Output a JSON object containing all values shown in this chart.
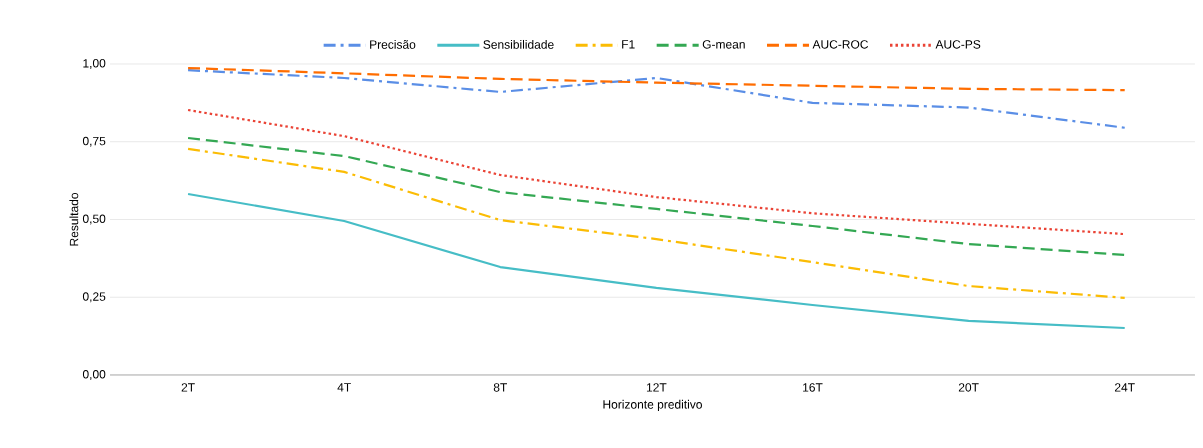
{
  "chart_data": {
    "type": "line",
    "xlabel": "Horizonte preditivo",
    "ylabel": "Resultado",
    "categories": [
      "2T",
      "4T",
      "8T",
      "12T",
      "16T",
      "20T",
      "24T"
    ],
    "ylim": [
      0,
      1
    ],
    "yticks": [
      {
        "value": 0,
        "label": "0,00"
      },
      {
        "value": 0.25,
        "label": "0,25"
      },
      {
        "value": 0.5,
        "label": "0,50"
      },
      {
        "value": 0.75,
        "label": "0,75"
      },
      {
        "value": 1,
        "label": "1,00"
      }
    ],
    "grid": "y",
    "legend": "top",
    "marker": "none",
    "series": [
      {
        "name": "Precisão",
        "color": "#5a8ee6",
        "line_style": "dashdot",
        "values": [
          0.98,
          0.955,
          0.91,
          0.955,
          0.875,
          0.86,
          0.795
        ]
      },
      {
        "name": "Sensibilidade",
        "color": "#46bdc6",
        "line_style": "solid",
        "values": [
          0.582,
          0.495,
          0.347,
          0.28,
          0.225,
          0.174,
          0.151
        ]
      },
      {
        "name": "F1",
        "color": "#fbbc04",
        "line_style": "dashdot",
        "values": [
          0.727,
          0.653,
          0.498,
          0.437,
          0.363,
          0.286,
          0.248
        ]
      },
      {
        "name": "G-mean",
        "color": "#34a853",
        "line_style": "dashed",
        "values": [
          0.762,
          0.704,
          0.588,
          0.534,
          0.479,
          0.421,
          0.386
        ]
      },
      {
        "name": "AUC-ROC",
        "color": "#ff6d01",
        "line_style": "dashed",
        "values": [
          0.987,
          0.97,
          0.952,
          0.94,
          0.93,
          0.92,
          0.916
        ]
      },
      {
        "name": "AUC-PS",
        "color": "#ea4335",
        "line_style": "dotted",
        "values": [
          0.852,
          0.768,
          0.643,
          0.572,
          0.52,
          0.486,
          0.453
        ]
      }
    ]
  }
}
